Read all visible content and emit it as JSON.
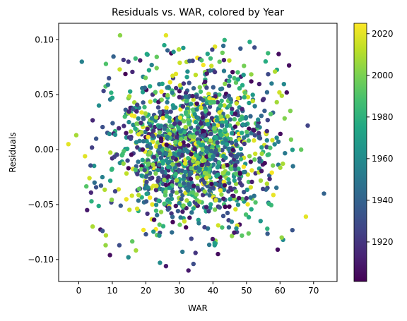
{
  "chart_data": {
    "type": "scatter",
    "title": "Residuals vs. WAR, colored by Year",
    "xlabel": "WAR",
    "ylabel": "Residuals",
    "xlim": [
      -6,
      77
    ],
    "ylim": [
      -0.12,
      0.115
    ],
    "xticks": [
      0,
      10,
      20,
      30,
      40,
      50,
      60,
      70
    ],
    "yticks": [
      -0.1,
      -0.05,
      0.0,
      0.05,
      0.1
    ],
    "xtick_labels": [
      "0",
      "10",
      "20",
      "30",
      "40",
      "50",
      "60",
      "70"
    ],
    "ytick_labels": [
      "−0.10",
      "−0.05",
      "0.00",
      "0.05",
      "0.10"
    ],
    "colorbar": {
      "label": "",
      "colormap": "viridis",
      "range": [
        1901,
        2025
      ],
      "ticks": [
        1920,
        1940,
        1960,
        1980,
        2000,
        2020
      ],
      "tick_labels": [
        "1920",
        "1940",
        "1960",
        "1980",
        "2000",
        "2020"
      ]
    },
    "grid": false,
    "legend": "none",
    "series": [
      {
        "x": [
          12.3,
          26.0,
          25.5,
          52.4,
          39.8,
          48.2,
          59.6,
          0.9,
          14.8,
          8.1,
          58.5,
          62.0,
          73.1,
          67.7,
          66.3,
          -3.1,
          2.5,
          3.8,
          59.3,
          60.9,
          4.7,
          60.5,
          32.7,
          34.2,
          41.5,
          34.8,
          30.9,
          14.8,
          9.3,
          12.1,
          8.0,
          8.1,
          26.0,
          24.2,
          40.5,
          56.2,
          54.2,
          8.7,
          9.0,
          12.2,
          39.3
        ],
        "y": [
          0.104,
          0.104,
          0.095,
          0.093,
          0.091,
          0.092,
          0.087,
          0.08,
          0.08,
          0.078,
          0.071,
          0.052,
          -0.04,
          -0.061,
          0.0,
          0.005,
          -0.055,
          -0.047,
          -0.091,
          -0.082,
          -0.03,
          -0.08,
          -0.11,
          -0.104,
          -0.095,
          -0.094,
          -0.093,
          -0.098,
          -0.096,
          -0.087,
          -0.087,
          -0.078,
          -0.106,
          -0.103,
          -0.085,
          -0.072,
          -0.065,
          0.059,
          0.065,
          0.073,
          0.083
        ],
        "c": [
          2003,
          2020,
          1975,
          1930,
          1925,
          1935,
          1905,
          1955,
          1920,
          1990,
          2010,
          1905,
          1940,
          2020,
          1995,
          2020,
          1910,
          1980,
          1905,
          1960,
          1945,
          2005,
          1910,
          1930,
          1905,
          1920,
          1950,
          1960,
          1905,
          1930,
          2005,
          2010,
          1910,
          1960,
          1970,
          1980,
          1965,
          1950,
          1930,
          2015,
          1985
        ]
      }
    ]
  }
}
